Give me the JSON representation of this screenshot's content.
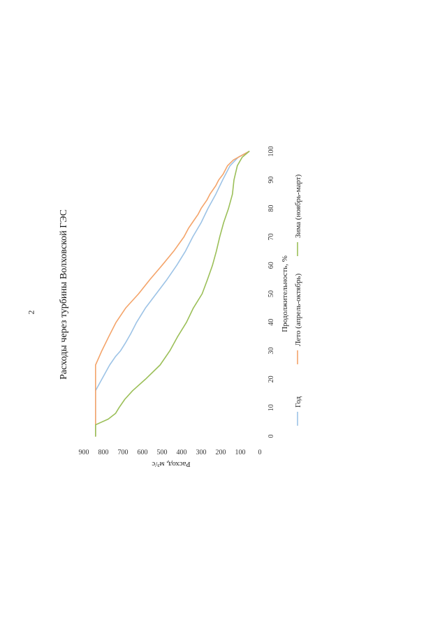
{
  "page_number": "2",
  "chart_data": {
    "type": "line",
    "orientation": "rotated-90-ccw",
    "title": "Расходы через турбины Волховской ГЭС",
    "xlabel": "Продолжительность, %",
    "ylabel": "Расход, м³/с",
    "xlim": [
      0,
      100
    ],
    "ylim": [
      0,
      900
    ],
    "x_ticks": [
      0,
      10,
      20,
      30,
      40,
      50,
      60,
      70,
      80,
      90,
      100
    ],
    "y_ticks": [
      0,
      100,
      200,
      300,
      400,
      500,
      600,
      700,
      800,
      900
    ],
    "grid": false,
    "legend_position": "bottom",
    "series": [
      {
        "name": "Год",
        "color": "#9dc3e6",
        "x": [
          0,
          16,
          20,
          25,
          28,
          30,
          33,
          36,
          40,
          45,
          50,
          55,
          60,
          65,
          70,
          75,
          80,
          85,
          90,
          95,
          98,
          100
        ],
        "y": [
          840,
          840,
          808,
          768,
          738,
          712,
          685,
          660,
          630,
          585,
          530,
          475,
          425,
          380,
          343,
          300,
          265,
          225,
          190,
          152,
          110,
          55
        ]
      },
      {
        "name": "Лето (апрель-октябрь)",
        "color": "#f4a46a",
        "x": [
          0,
          25,
          30,
          35,
          40,
          45,
          50,
          55,
          60,
          65,
          70,
          73,
          75,
          78,
          80,
          83,
          85,
          88,
          90,
          92,
          95,
          97,
          100
        ],
        "y": [
          840,
          840,
          808,
          772,
          735,
          686,
          620,
          562,
          500,
          440,
          388,
          365,
          345,
          315,
          300,
          270,
          255,
          225,
          210,
          188,
          165,
          135,
          55
        ]
      },
      {
        "name": "Зима (ноябрь-март)",
        "color": "#9bbf58",
        "x": [
          0,
          4,
          6,
          8,
          10,
          13,
          16,
          20,
          25,
          30,
          35,
          40,
          45,
          50,
          55,
          60,
          65,
          70,
          75,
          80,
          85,
          90,
          95,
          98,
          100
        ],
        "y": [
          840,
          840,
          775,
          738,
          720,
          690,
          650,
          585,
          510,
          460,
          420,
          375,
          340,
          295,
          268,
          242,
          222,
          205,
          185,
          160,
          140,
          132,
          115,
          90,
          55
        ]
      }
    ]
  }
}
